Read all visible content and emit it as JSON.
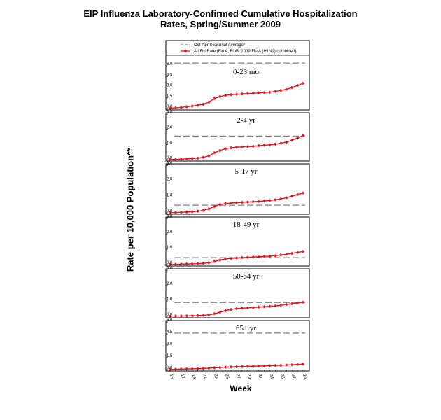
{
  "title": {
    "line1": "EIP Influenza Laboratory-Confirmed Cumulative Hospitalization",
    "line2": "Rates, Spring/Summer 2009"
  },
  "chart_data": {
    "type": "line",
    "ylabel": "Rate per 10,000 Population**",
    "xlabel": "Week",
    "x_ticks": [
      15,
      17,
      19,
      21,
      23,
      25,
      27,
      29,
      31,
      33,
      35,
      37,
      39
    ],
    "weeks": [
      15,
      16,
      17,
      18,
      19,
      20,
      21,
      22,
      23,
      24,
      25,
      26,
      27,
      28,
      29,
      30,
      31,
      32,
      33,
      34,
      35,
      36,
      37,
      38,
      39
    ],
    "legend": {
      "position": "top",
      "entries": [
        {
          "label": "Oct-Apr Seasonal Average*",
          "style": "dashed",
          "color": "#808080"
        },
        {
          "label": "All Flu Rate (Flu A, FluB, 2009 Flu A (H1N1) combined)",
          "style": "line-diamond",
          "color": "#e8141c"
        }
      ]
    },
    "panels": [
      {
        "label": "0-23 mo",
        "ylim": [
          0,
          7.2
        ],
        "yticks": [
          "0.0",
          "1.5",
          "3.0",
          "4.5",
          "6.0"
        ],
        "ytick_values": [
          0,
          1.5,
          3.0,
          4.5,
          6.0
        ],
        "seasonal_avg": 6.4,
        "values": [
          0.05,
          0.1,
          0.15,
          0.25,
          0.35,
          0.45,
          0.6,
          0.9,
          1.4,
          1.7,
          1.85,
          1.95,
          2.0,
          2.05,
          2.1,
          2.15,
          2.2,
          2.25,
          2.3,
          2.4,
          2.55,
          2.7,
          2.95,
          3.25,
          3.55
        ]
      },
      {
        "label": "2-4 yr",
        "ylim": [
          0,
          3.0
        ],
        "yticks": [
          "0.0",
          "1.0",
          "2.0",
          "3.0"
        ],
        "ytick_values": [
          0,
          1.0,
          2.0,
          3.0
        ],
        "seasonal_avg": 1.55,
        "values": [
          0.01,
          0.02,
          0.03,
          0.05,
          0.07,
          0.1,
          0.15,
          0.25,
          0.45,
          0.6,
          0.72,
          0.78,
          0.82,
          0.84,
          0.86,
          0.88,
          0.92,
          0.95,
          0.98,
          1.02,
          1.08,
          1.15,
          1.28,
          1.42,
          1.6
        ]
      },
      {
        "label": "5-17 yr",
        "ylim": [
          0,
          3.0
        ],
        "yticks": [
          "0.0",
          "1.0",
          "2.0",
          "3.0"
        ],
        "ytick_values": [
          0,
          1.0,
          2.0,
          3.0
        ],
        "seasonal_avg": 0.48,
        "values": [
          0.01,
          0.02,
          0.03,
          0.05,
          0.07,
          0.1,
          0.15,
          0.25,
          0.4,
          0.52,
          0.58,
          0.62,
          0.64,
          0.66,
          0.68,
          0.7,
          0.72,
          0.75,
          0.78,
          0.82,
          0.88,
          0.95,
          1.05,
          1.15,
          1.25
        ]
      },
      {
        "label": "18-49 yr",
        "ylim": [
          0,
          3.0
        ],
        "yticks": [
          "0.0",
          "1.0",
          "2.0",
          "3.0"
        ],
        "ytick_values": [
          0,
          1.0,
          2.0,
          3.0
        ],
        "seasonal_avg": 0.45,
        "values": [
          0.01,
          0.02,
          0.03,
          0.04,
          0.05,
          0.06,
          0.08,
          0.12,
          0.2,
          0.3,
          0.36,
          0.4,
          0.43,
          0.45,
          0.47,
          0.49,
          0.51,
          0.53,
          0.55,
          0.58,
          0.62,
          0.67,
          0.73,
          0.79,
          0.85
        ]
      },
      {
        "label": "50-64 yr",
        "ylim": [
          0,
          3.0
        ],
        "yticks": [
          "0.0",
          "1.0",
          "2.0",
          "3.0"
        ],
        "ytick_values": [
          0,
          1.0,
          2.0,
          3.0
        ],
        "seasonal_avg": 0.9,
        "values": [
          0.01,
          0.02,
          0.02,
          0.03,
          0.04,
          0.05,
          0.07,
          0.1,
          0.17,
          0.27,
          0.37,
          0.45,
          0.5,
          0.53,
          0.55,
          0.57,
          0.6,
          0.62,
          0.65,
          0.68,
          0.72,
          0.77,
          0.82,
          0.87,
          0.92
        ]
      },
      {
        "label": "65+ yr",
        "ylim": [
          0,
          6.0
        ],
        "yticks": [
          "0.0",
          "1.5",
          "3.0",
          "4.5",
          "6.0"
        ],
        "ytick_values": [
          0,
          1.5,
          3.0,
          4.5,
          6.0
        ],
        "seasonal_avg": 4.6,
        "values": [
          0.02,
          0.04,
          0.06,
          0.08,
          0.1,
          0.12,
          0.15,
          0.18,
          0.22,
          0.26,
          0.3,
          0.33,
          0.36,
          0.38,
          0.4,
          0.42,
          0.44,
          0.46,
          0.48,
          0.51,
          0.54,
          0.57,
          0.6,
          0.64,
          0.68
        ]
      }
    ]
  }
}
